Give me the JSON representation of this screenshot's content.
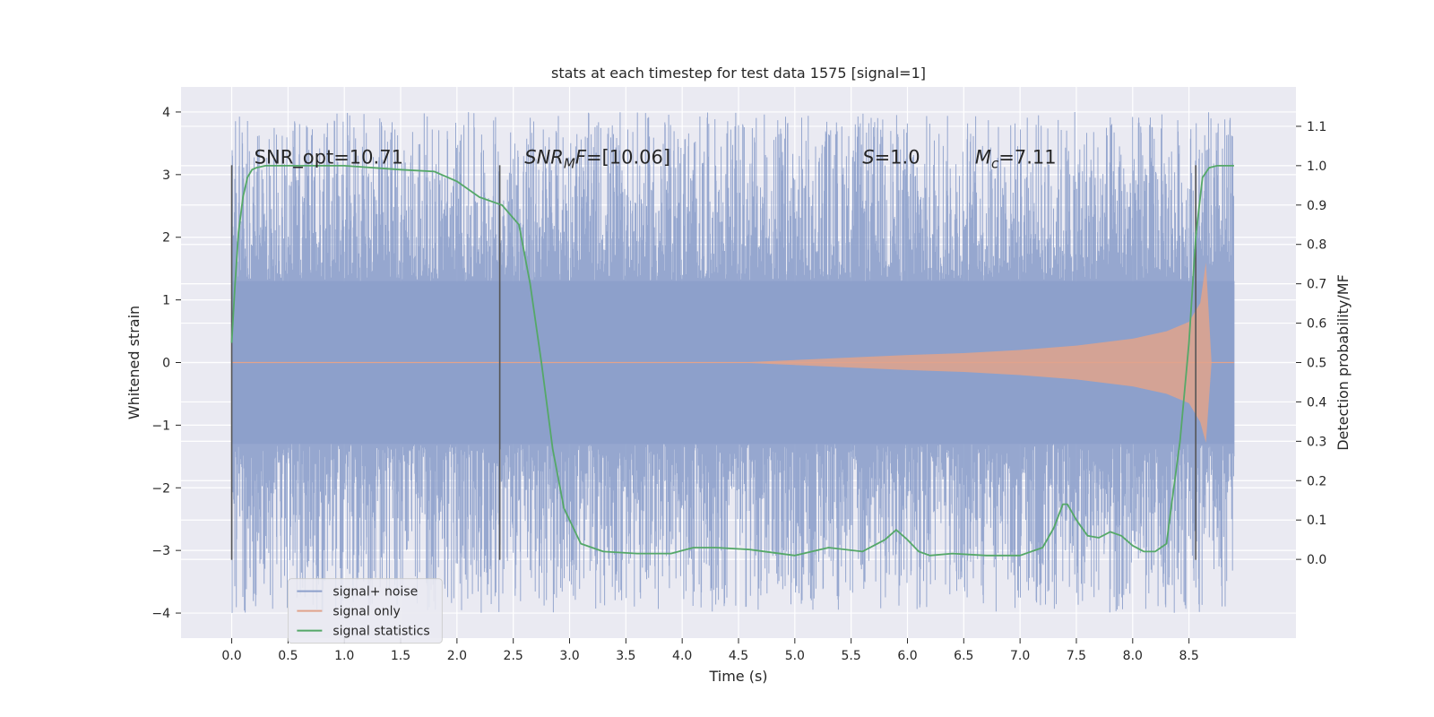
{
  "chart_data": {
    "type": "line",
    "title": "stats at each timestep for test data 1575 [signal=1]",
    "xlabel": "Time (s)",
    "ylabel_left": "Whitened strain",
    "ylabel_right": "Detection probability/MF",
    "xlim": [
      -0.45,
      9.45
    ],
    "ylim_left": [
      -4.4,
      4.4
    ],
    "ylim_right": [
      -0.2,
      1.2
    ],
    "x_ticks": [
      0.0,
      0.5,
      1.0,
      1.5,
      2.0,
      2.5,
      3.0,
      3.5,
      4.0,
      4.5,
      5.0,
      5.5,
      6.0,
      6.5,
      7.0,
      7.5,
      8.0,
      8.5
    ],
    "x_tick_labels": [
      "0.0",
      "0.5",
      "1.0",
      "1.5",
      "2.0",
      "2.5",
      "3.0",
      "3.5",
      "4.0",
      "4.5",
      "5.0",
      "5.5",
      "6.0",
      "6.5",
      "7.0",
      "7.5",
      "8.0",
      "8.5"
    ],
    "y_ticks_left": [
      4,
      3,
      2,
      1,
      0,
      -1,
      -2,
      -3,
      -4
    ],
    "y_tick_labels_left": [
      "4",
      "3",
      "2",
      "1",
      "0",
      "−1",
      "−2",
      "−3",
      "−4"
    ],
    "y_ticks_right": [
      1.1,
      1.0,
      0.9,
      0.8,
      0.7,
      0.6,
      0.5,
      0.4,
      0.3,
      0.2,
      0.1,
      0.0
    ],
    "y_tick_labels_right": [
      "1.1",
      "1.0",
      "0.9",
      "0.8",
      "0.7",
      "0.6",
      "0.5",
      "0.4",
      "0.3",
      "0.2",
      "0.1",
      "0.0"
    ],
    "grid": true,
    "series": [
      {
        "name": "signal+ noise",
        "color": "#8da0cb",
        "axis": "left",
        "note": "whitened strain noise with peaks up to about ±4",
        "x_range": [
          0.0,
          8.9
        ],
        "amplitude_envelope": 1.3
      },
      {
        "name": "signal only",
        "color": "#e1a38c",
        "axis": "left",
        "note": "chirp growing from ~0 at 4.5 s to peak ~1.6 near 8.6 s",
        "x": [
          4.5,
          5.0,
          5.5,
          6.0,
          6.5,
          7.0,
          7.5,
          8.0,
          8.3,
          8.5,
          8.6,
          8.65,
          8.7
        ],
        "envelope": [
          0.0,
          0.04,
          0.08,
          0.12,
          0.15,
          0.2,
          0.27,
          0.38,
          0.5,
          0.65,
          0.95,
          1.6,
          0.0
        ]
      },
      {
        "name": "signal statistics",
        "color": "#55a868",
        "axis": "right",
        "x": [
          0.0,
          0.03,
          0.06,
          0.1,
          0.14,
          0.18,
          0.22,
          0.3,
          0.5,
          1.0,
          1.5,
          1.8,
          2.0,
          2.2,
          2.4,
          2.55,
          2.65,
          2.75,
          2.85,
          2.95,
          3.1,
          3.3,
          3.6,
          3.9,
          4.1,
          4.3,
          4.6,
          5.0,
          5.3,
          5.6,
          5.8,
          5.9,
          6.0,
          6.1,
          6.2,
          6.4,
          6.7,
          7.0,
          7.2,
          7.3,
          7.38,
          7.42,
          7.5,
          7.6,
          7.7,
          7.8,
          7.9,
          8.0,
          8.1,
          8.2,
          8.3,
          8.35,
          8.42,
          8.5,
          8.56,
          8.62,
          8.68,
          8.75,
          8.9
        ],
        "values": [
          0.55,
          0.7,
          0.83,
          0.92,
          0.97,
          0.99,
          0.995,
          1.0,
          1.0,
          1.0,
          0.99,
          0.985,
          0.96,
          0.92,
          0.9,
          0.85,
          0.7,
          0.5,
          0.28,
          0.13,
          0.04,
          0.02,
          0.015,
          0.015,
          0.03,
          0.03,
          0.025,
          0.01,
          0.03,
          0.02,
          0.05,
          0.075,
          0.05,
          0.02,
          0.01,
          0.015,
          0.01,
          0.01,
          0.03,
          0.08,
          0.14,
          0.14,
          0.1,
          0.06,
          0.055,
          0.07,
          0.06,
          0.035,
          0.02,
          0.02,
          0.04,
          0.15,
          0.3,
          0.55,
          0.82,
          0.97,
          0.995,
          1.0,
          1.0
        ]
      }
    ],
    "vertical_lines": [
      0.0,
      2.38,
      8.56
    ],
    "vertical_line_range": [
      -3.15,
      3.15
    ],
    "annotations": [
      {
        "x": 0.2,
        "y": 3.18,
        "parts": [
          {
            "t": "SNR_opt=10.71",
            "style": "normal"
          }
        ]
      },
      {
        "x": 2.6,
        "y": 3.18,
        "parts": [
          {
            "t": "SNR",
            "style": "italic"
          },
          {
            "t": "M",
            "style": "italic-sub"
          },
          {
            "t": "F",
            "style": "italic"
          },
          {
            "t": "=[10.06]",
            "style": "normal"
          }
        ]
      },
      {
        "x": 5.6,
        "y": 3.18,
        "parts": [
          {
            "t": "S",
            "style": "italic"
          },
          {
            "t": "=1.0",
            "style": "normal"
          }
        ]
      },
      {
        "x": 6.6,
        "y": 3.18,
        "parts": [
          {
            "t": "M",
            "style": "italic"
          },
          {
            "t": "c",
            "style": "italic-sub"
          },
          {
            "t": "=7.11",
            "style": "normal"
          }
        ]
      }
    ],
    "legend": {
      "location": "lower-left",
      "entries": [
        {
          "label": "signal+ noise",
          "color": "#8da0cb"
        },
        {
          "label": "signal only",
          "color": "#e1a38c"
        },
        {
          "label": "signal statistics",
          "color": "#55a868"
        }
      ]
    }
  }
}
